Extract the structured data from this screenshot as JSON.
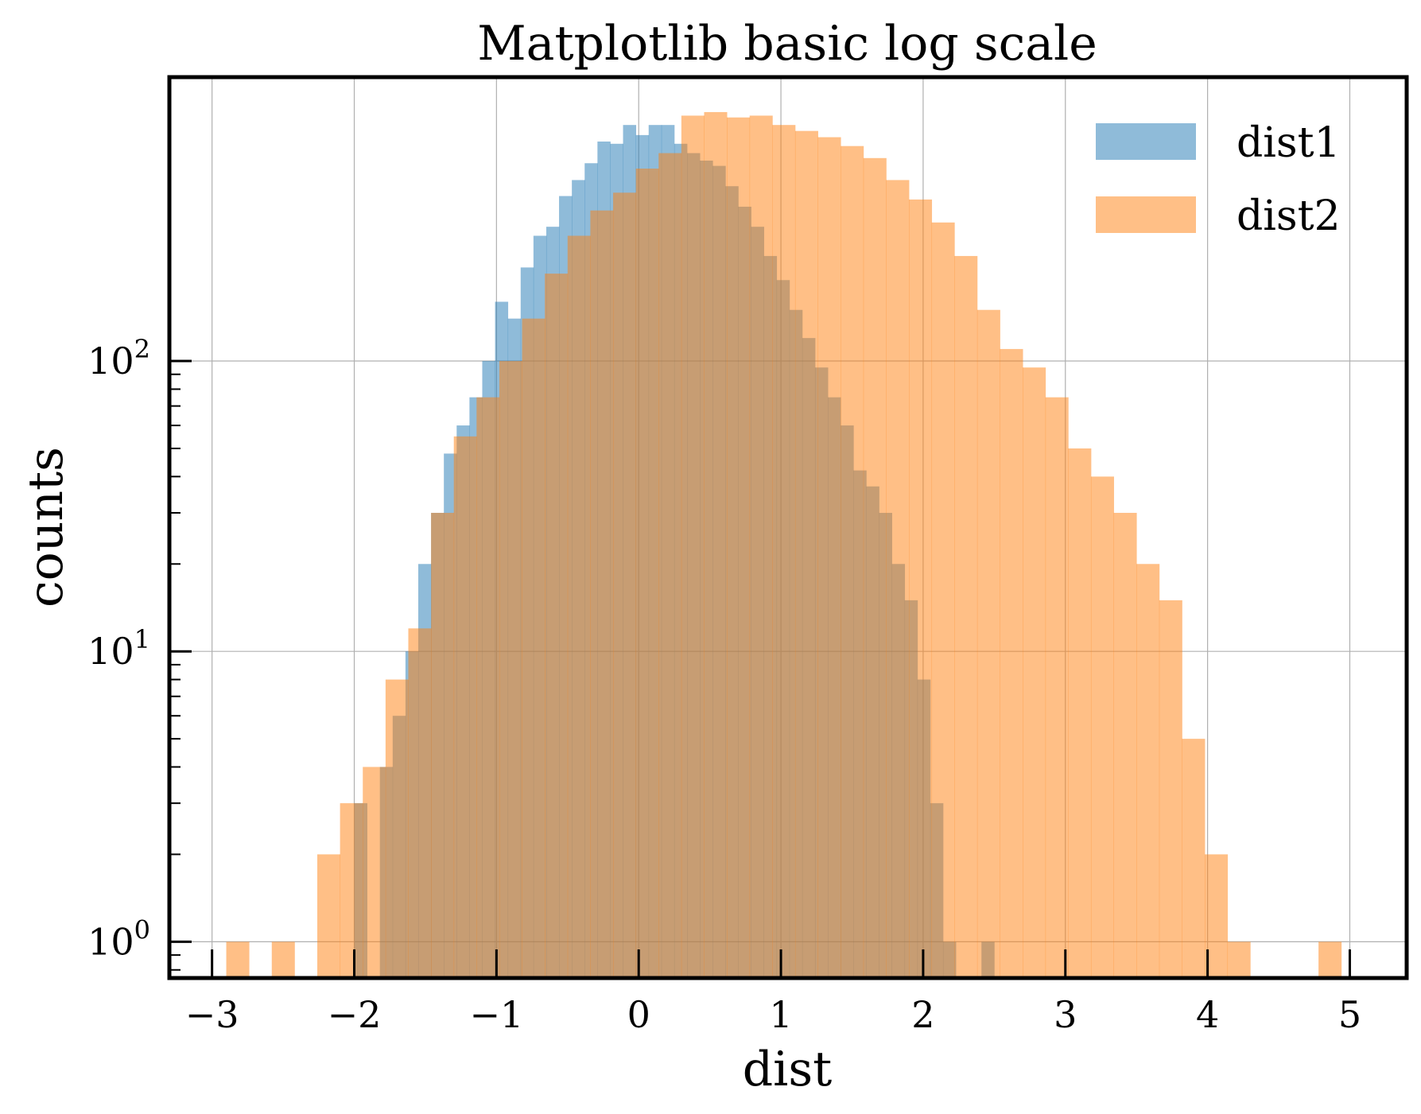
{
  "chart_data": {
    "type": "histogram",
    "title": "Matplotlib basic log scale",
    "xlabel": "dist",
    "ylabel": "counts",
    "xscale": "linear",
    "yscale": "log",
    "xlim": [
      -3.3,
      5.4
    ],
    "ylim": [
      0.75,
      950
    ],
    "grid": true,
    "legend_position": "top-right",
    "x_ticks": [
      {
        "value": -3,
        "label": "−3"
      },
      {
        "value": -2,
        "label": "−2"
      },
      {
        "value": -1,
        "label": "−1"
      },
      {
        "value": 0,
        "label": "0"
      },
      {
        "value": 1,
        "label": "1"
      },
      {
        "value": 2,
        "label": "2"
      },
      {
        "value": 3,
        "label": "3"
      },
      {
        "value": 4,
        "label": "4"
      },
      {
        "value": 5,
        "label": "5"
      }
    ],
    "y_ticks": [
      {
        "value": 1,
        "base": "10",
        "exp": "0"
      },
      {
        "value": 10,
        "base": "10",
        "exp": "1"
      },
      {
        "value": 100,
        "base": "10",
        "exp": "2"
      }
    ],
    "series": [
      {
        "name": "dist1",
        "color": "#1f77b4",
        "alpha": 0.5,
        "bins": [
          [
            -2.0,
            -1.91,
            3
          ],
          [
            -1.91,
            -1.82,
            0
          ],
          [
            -1.82,
            -1.73,
            4
          ],
          [
            -1.73,
            -1.64,
            6
          ],
          [
            -1.64,
            -1.55,
            10
          ],
          [
            -1.55,
            -1.46,
            20
          ],
          [
            -1.46,
            -1.37,
            30
          ],
          [
            -1.37,
            -1.28,
            48
          ],
          [
            -1.28,
            -1.19,
            60
          ],
          [
            -1.19,
            -1.1,
            75
          ],
          [
            -1.1,
            -1.01,
            100
          ],
          [
            -1.01,
            -0.92,
            160
          ],
          [
            -0.92,
            -0.83,
            140
          ],
          [
            -0.83,
            -0.74,
            210
          ],
          [
            -0.74,
            -0.65,
            270
          ],
          [
            -0.65,
            -0.56,
            290
          ],
          [
            -0.56,
            -0.47,
            370
          ],
          [
            -0.47,
            -0.38,
            420
          ],
          [
            -0.38,
            -0.29,
            480
          ],
          [
            -0.29,
            -0.2,
            570
          ],
          [
            -0.2,
            -0.11,
            560
          ],
          [
            -0.11,
            -0.02,
            650
          ],
          [
            -0.02,
            0.07,
            600
          ],
          [
            0.07,
            0.16,
            650
          ],
          [
            0.16,
            0.25,
            650
          ],
          [
            0.25,
            0.34,
            560
          ],
          [
            0.34,
            0.43,
            520
          ],
          [
            0.43,
            0.52,
            490
          ],
          [
            0.52,
            0.61,
            470
          ],
          [
            0.61,
            0.7,
            400
          ],
          [
            0.7,
            0.79,
            340
          ],
          [
            0.79,
            0.88,
            290
          ],
          [
            0.88,
            0.97,
            230
          ],
          [
            0.97,
            1.06,
            190
          ],
          [
            1.06,
            1.15,
            150
          ],
          [
            1.15,
            1.24,
            120
          ],
          [
            1.24,
            1.33,
            95
          ],
          [
            1.33,
            1.42,
            75
          ],
          [
            1.42,
            1.51,
            60
          ],
          [
            1.51,
            1.6,
            42
          ],
          [
            1.6,
            1.69,
            37
          ],
          [
            1.69,
            1.78,
            30
          ],
          [
            1.78,
            1.87,
            20
          ],
          [
            1.87,
            1.96,
            15
          ],
          [
            1.96,
            2.05,
            8
          ],
          [
            2.05,
            2.14,
            3
          ],
          [
            2.14,
            2.23,
            1
          ],
          [
            2.23,
            2.32,
            0
          ],
          [
            2.32,
            2.41,
            0
          ],
          [
            2.41,
            2.5,
            1
          ]
        ]
      },
      {
        "name": "dist2",
        "color": "#ff7f0e",
        "alpha": 0.5,
        "bins": [
          [
            -2.9,
            -2.74,
            1
          ],
          [
            -2.74,
            -2.58,
            0
          ],
          [
            -2.58,
            -2.42,
            1
          ],
          [
            -2.42,
            -2.26,
            0
          ],
          [
            -2.26,
            -2.1,
            2
          ],
          [
            -2.1,
            -1.94,
            3
          ],
          [
            -1.94,
            -1.78,
            4
          ],
          [
            -1.78,
            -1.62,
            8
          ],
          [
            -1.62,
            -1.46,
            12
          ],
          [
            -1.46,
            -1.3,
            30
          ],
          [
            -1.3,
            -1.14,
            55
          ],
          [
            -1.14,
            -0.98,
            75
          ],
          [
            -0.98,
            -0.82,
            100
          ],
          [
            -0.82,
            -0.66,
            140
          ],
          [
            -0.66,
            -0.5,
            200
          ],
          [
            -0.5,
            -0.34,
            270
          ],
          [
            -0.34,
            -0.18,
            330
          ],
          [
            -0.18,
            -0.02,
            380
          ],
          [
            -0.02,
            0.14,
            460
          ],
          [
            0.14,
            0.3,
            520
          ],
          [
            0.3,
            0.46,
            700
          ],
          [
            0.46,
            0.62,
            720
          ],
          [
            0.62,
            0.78,
            690
          ],
          [
            0.78,
            0.94,
            700
          ],
          [
            0.94,
            1.1,
            650
          ],
          [
            1.1,
            1.26,
            620
          ],
          [
            1.26,
            1.42,
            590
          ],
          [
            1.42,
            1.58,
            550
          ],
          [
            1.58,
            1.74,
            500
          ],
          [
            1.74,
            1.9,
            420
          ],
          [
            1.9,
            2.06,
            360
          ],
          [
            2.06,
            2.22,
            300
          ],
          [
            2.22,
            2.38,
            230
          ],
          [
            2.38,
            2.54,
            150
          ],
          [
            2.54,
            2.7,
            110
          ],
          [
            2.7,
            2.86,
            95
          ],
          [
            2.86,
            3.02,
            75
          ],
          [
            3.02,
            3.18,
            50
          ],
          [
            3.18,
            3.34,
            40
          ],
          [
            3.34,
            3.5,
            30
          ],
          [
            3.5,
            3.66,
            20
          ],
          [
            3.66,
            3.82,
            15
          ],
          [
            3.82,
            3.98,
            5
          ],
          [
            3.98,
            4.14,
            2
          ],
          [
            4.14,
            4.3,
            1
          ],
          [
            4.3,
            4.46,
            0
          ],
          [
            4.46,
            4.62,
            0
          ],
          [
            4.62,
            4.78,
            0
          ],
          [
            4.78,
            4.94,
            1
          ]
        ]
      }
    ]
  }
}
